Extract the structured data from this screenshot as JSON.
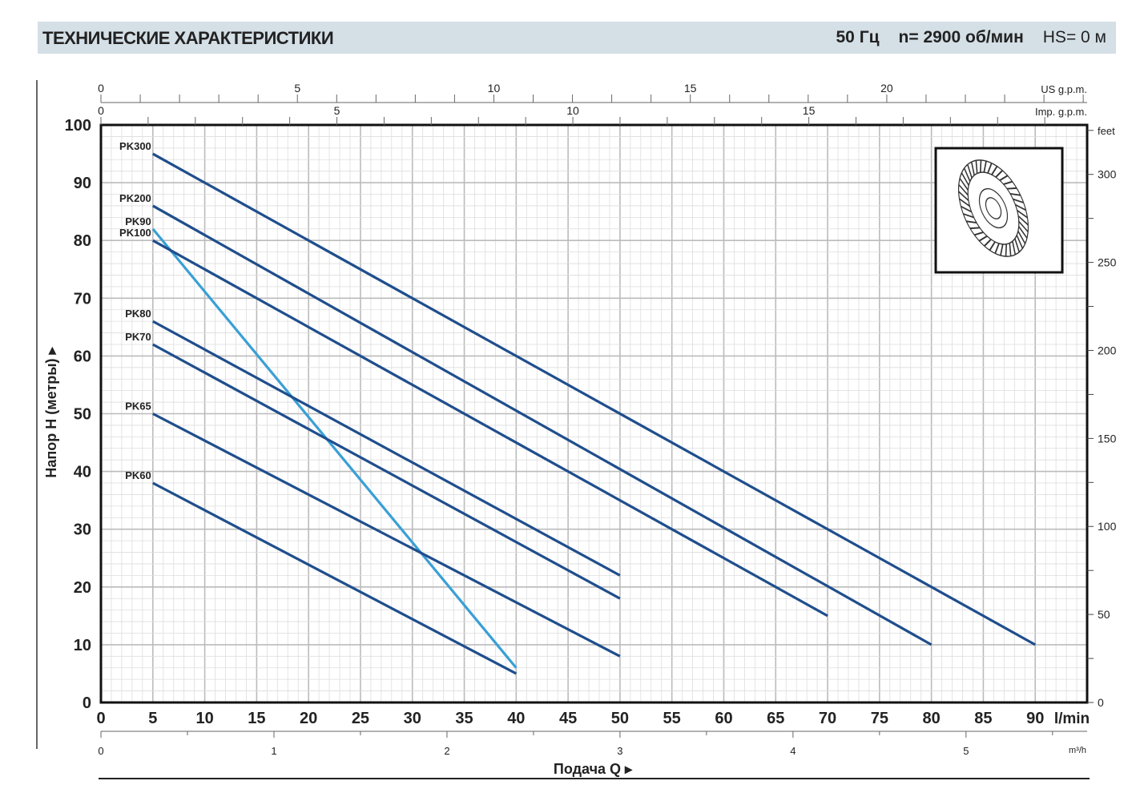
{
  "header": {
    "title": "ТЕХНИЧЕСКИЕ ХАРАКТЕРИСТИКИ",
    "freq": "50 Гц",
    "speed": "n= 2900  об/мин",
    "hs": "HS= 0 м"
  },
  "chart_data": {
    "type": "line",
    "xlabel": "Подача Q",
    "ylabel": "Напор H  (метры)",
    "x_unit": "l/min",
    "xlim": [
      0,
      95
    ],
    "ylim": [
      0,
      100
    ],
    "x_ticks": [
      0,
      5,
      10,
      15,
      20,
      25,
      30,
      35,
      40,
      45,
      50,
      55,
      60,
      65,
      70,
      75,
      80,
      85,
      90
    ],
    "y_ticks": [
      0,
      10,
      20,
      30,
      40,
      50,
      60,
      70,
      80,
      90,
      100
    ],
    "grid": true,
    "secondary_axes": {
      "top_us": {
        "unit": "US g.p.m.",
        "ticks": [
          0,
          5,
          10,
          15,
          20
        ]
      },
      "top_imp": {
        "unit": "Imp. g.p.m.",
        "ticks": [
          0,
          5,
          10,
          15
        ]
      },
      "right_feet": {
        "unit": "feet",
        "ticks": [
          0,
          50,
          100,
          150,
          200,
          250,
          300
        ]
      },
      "bottom_m3h": {
        "unit": "m³/h",
        "ticks": [
          0,
          1,
          2,
          3,
          4,
          5
        ]
      }
    },
    "series": [
      {
        "name": "PK300",
        "color": "#1f4e8c",
        "x": [
          5,
          90
        ],
        "y": [
          95,
          10
        ]
      },
      {
        "name": "PK200",
        "color": "#1f4e8c",
        "x": [
          5,
          80
        ],
        "y": [
          86,
          10
        ]
      },
      {
        "name": "PK90",
        "color": "#3a9fd6",
        "x": [
          5,
          40
        ],
        "y": [
          82,
          6
        ]
      },
      {
        "name": "PK100",
        "color": "#1f4e8c",
        "x": [
          5,
          70
        ],
        "y": [
          80,
          15
        ]
      },
      {
        "name": "PK80",
        "color": "#1f4e8c",
        "x": [
          5,
          50
        ],
        "y": [
          66,
          22
        ]
      },
      {
        "name": "PK70",
        "color": "#1f4e8c",
        "x": [
          5,
          50
        ],
        "y": [
          62,
          18
        ]
      },
      {
        "name": "PK65",
        "color": "#1f4e8c",
        "x": [
          5,
          50
        ],
        "y": [
          50,
          8
        ]
      },
      {
        "name": "PK60",
        "color": "#1f4e8c",
        "x": [
          5,
          40
        ],
        "y": [
          38,
          5
        ]
      }
    ],
    "inset_image": "impeller-drawing"
  }
}
